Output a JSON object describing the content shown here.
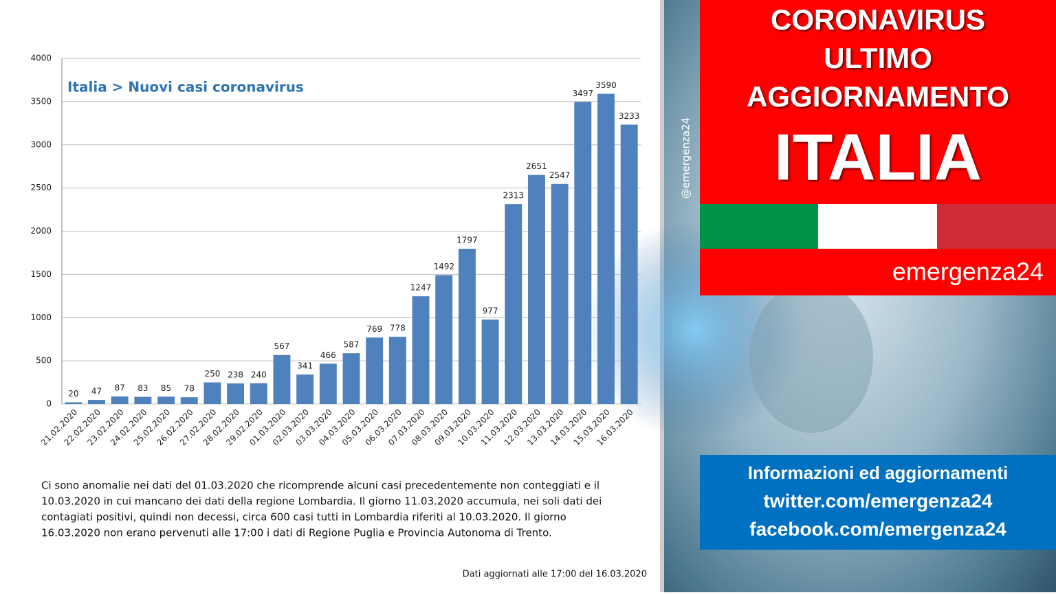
{
  "chart_data": {
    "type": "bar",
    "title": "Italia > Nuovi casi coronavirus",
    "categories": [
      "21.02.2020",
      "22.02.2020",
      "23.02.2020",
      "24.02.2020",
      "25.02.2020",
      "26.02.2020",
      "27.02.2020",
      "28.02.2020",
      "29.02.2020",
      "01.03.2020",
      "02.03.2020",
      "03.03.2020",
      "04.03.2020",
      "05.03.2020",
      "06.03.2020",
      "07.03.2020",
      "08.03.2020",
      "09.03.2020",
      "10.03.2020",
      "11.03.2020",
      "12.03.2020",
      "13.03.2020",
      "14.03.2020",
      "15.03.2020",
      "16.03.2020"
    ],
    "values": [
      20,
      47,
      87,
      83,
      85,
      78,
      250,
      238,
      240,
      567,
      341,
      466,
      587,
      769,
      778,
      1247,
      1492,
      1797,
      977,
      2313,
      2651,
      2547,
      3497,
      3590,
      3233
    ],
    "color": "#4f81bd",
    "ylim": [
      0,
      4000
    ],
    "yticks": [
      0,
      500,
      1000,
      1500,
      2000,
      2500,
      3000,
      3500,
      4000
    ],
    "grid": true,
    "annotations": [
      "Ci sono anomalie  nei dati del 01.03.2020 che ricomprende  alcuni casi precedentemente  non conteggiati  e il",
      "10.03.2020 in cui mancano dei dati della  regione Lombardia.  Il giorno 11.03.2020  accumula, nei soli dati dei",
      "contagiati  positivi,  quindi non decessi,  circa 600 casi tutti in Lombardia  riferiti al 10.03.2020. Il giorno",
      "16.03.2020 non erano pervenuti alle 17:00 i dati di Regione Puglia e Provincia Autonoma di Trento."
    ],
    "footnote": "Dati aggiornati alle  17:00 del 16.03.2020"
  },
  "banner": {
    "lines": [
      "CORONAVIRUS",
      "ULTIMO",
      "AGGIORNAMENTO"
    ],
    "headline": "ITALIA",
    "brand": "emergenza24",
    "handle": "@emergenza24"
  },
  "info": {
    "lines": [
      "Informazioni ed aggiornamenti",
      "twitter.com/emergenza24",
      "facebook.com/emergenza24"
    ]
  }
}
